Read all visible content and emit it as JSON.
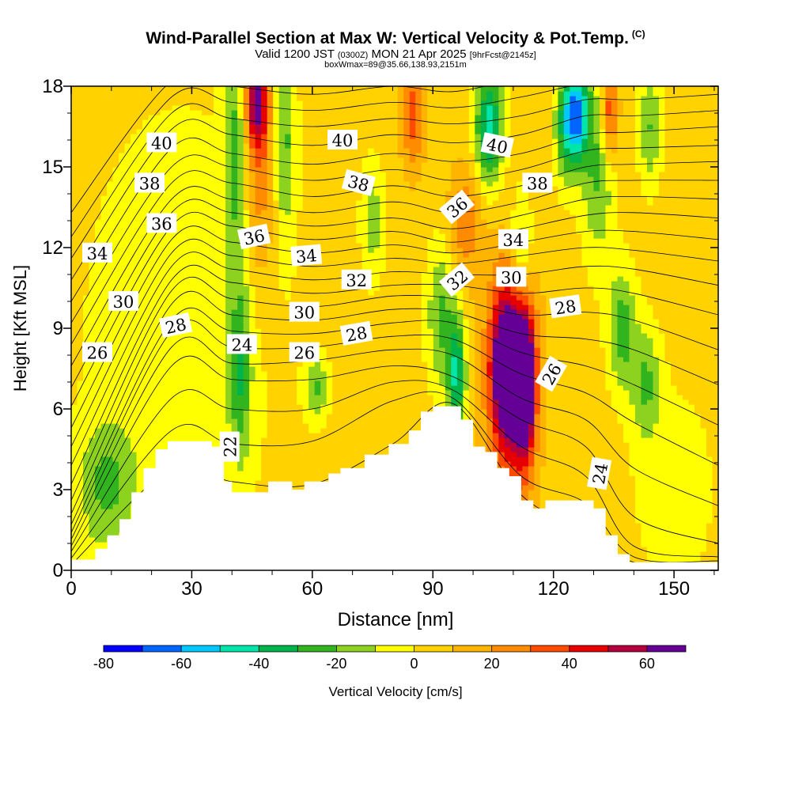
{
  "header": {
    "title": "Wind-Parallel Section at Max W: Vertical Velocity & Pot.Temp.",
    "copyright": "(C)",
    "valid_prefix": "Valid 1200 JST",
    "valid_utc": "(0300Z)",
    "valid_date": "MON 21 Apr 2025",
    "forecast": "[9hrFcst@2145z]",
    "box_info": "boxWmax=89@35.66,138.93,2151m"
  },
  "chart_data": {
    "type": "heatmap",
    "title": "Wind-Parallel Section at Max W: Vertical Velocity & Pot.Temp.",
    "xlabel": "Distance [nm]",
    "ylabel": "Height [Kft MSL]",
    "xlim": [
      0,
      161
    ],
    "ylim": [
      0,
      18
    ],
    "x_ticks": [
      0,
      30,
      60,
      90,
      120,
      150
    ],
    "y_ticks": [
      0,
      3,
      6,
      9,
      12,
      15,
      18
    ],
    "grid": false,
    "colorbar": {
      "label": "Vertical Velocity [cm/s]",
      "tick_values": [
        -80,
        -60,
        -40,
        -20,
        0,
        20,
        40,
        60
      ],
      "tick_labels": [
        "-80",
        "-60",
        "-40",
        "-20",
        "0",
        "20",
        "40",
        "60"
      ],
      "bins": [
        {
          "from": -80,
          "to": -70,
          "color": "#0000ff"
        },
        {
          "from": -70,
          "to": -60,
          "color": "#0064ff"
        },
        {
          "from": -60,
          "to": -50,
          "color": "#00c8ff"
        },
        {
          "from": -50,
          "to": -40,
          "color": "#00e6aa"
        },
        {
          "from": -40,
          "to": -30,
          "color": "#00b44b"
        },
        {
          "from": -30,
          "to": -20,
          "color": "#32b41e"
        },
        {
          "from": -20,
          "to": -10,
          "color": "#8cd21e"
        },
        {
          "from": -10,
          "to": 0,
          "color": "#ffff00"
        },
        {
          "from": 0,
          "to": 10,
          "color": "#ffd200"
        },
        {
          "from": 10,
          "to": 20,
          "color": "#ffb400"
        },
        {
          "from": 20,
          "to": 30,
          "color": "#ff8c00"
        },
        {
          "from": 30,
          "to": 40,
          "color": "#ff4b00"
        },
        {
          "from": 40,
          "to": 50,
          "color": "#e60000"
        },
        {
          "from": 50,
          "to": 60,
          "color": "#b4003c"
        },
        {
          "from": 60,
          "to": 70,
          "color": "#640096"
        }
      ]
    },
    "background_color": "#ffd200",
    "vertical_velocity_features": [
      {
        "x": 3,
        "y": 0.8,
        "w": 0,
        "sx": 3,
        "sy": 0.6
      },
      {
        "x": 9,
        "y": 3.2,
        "w": -20,
        "sx": 5,
        "sy": 1.6
      },
      {
        "x": 27,
        "y": 9,
        "w": -5,
        "sx": 20,
        "sy": 7
      },
      {
        "x": 46,
        "y": 17.5,
        "w": 55,
        "sx": 2,
        "sy": 1.2
      },
      {
        "x": 47,
        "y": 15,
        "w": 30,
        "sx": 3,
        "sy": 3
      },
      {
        "x": 41,
        "y": 15.5,
        "w": -25,
        "sx": 2,
        "sy": 2.5
      },
      {
        "x": 42,
        "y": 7.5,
        "w": -25,
        "sx": 2,
        "sy": 2.5
      },
      {
        "x": 53,
        "y": 16,
        "w": -22,
        "sx": 2,
        "sy": 2.5
      },
      {
        "x": 61,
        "y": 6.8,
        "w": -20,
        "sx": 2,
        "sy": 0.8
      },
      {
        "x": 75,
        "y": 13,
        "w": -15,
        "sx": 2,
        "sy": 1.6
      },
      {
        "x": 85,
        "y": 17,
        "w": 35,
        "sx": 2,
        "sy": 1.5
      },
      {
        "x": 92,
        "y": 9.5,
        "w": -22,
        "sx": 2.5,
        "sy": 2
      },
      {
        "x": 96,
        "y": 7.2,
        "w": -40,
        "sx": 1.6,
        "sy": 1.6
      },
      {
        "x": 98,
        "y": 13,
        "w": 28,
        "sx": 3,
        "sy": 1.5
      },
      {
        "x": 104,
        "y": 16.5,
        "w": -45,
        "sx": 2.5,
        "sy": 1.6
      },
      {
        "x": 108,
        "y": 7.5,
        "w": 62,
        "sx": 2.2,
        "sy": 1.6
      },
      {
        "x": 108,
        "y": 7.5,
        "w": 40,
        "sx": 4,
        "sy": 3
      },
      {
        "x": 113,
        "y": 7,
        "w": 68,
        "sx": 1.5,
        "sy": 1.6
      },
      {
        "x": 112,
        "y": 7,
        "w": 40,
        "sx": 3,
        "sy": 3
      },
      {
        "x": 112,
        "y": 12,
        "w": -25,
        "sx": 2,
        "sy": 1.5
      },
      {
        "x": 126,
        "y": 17,
        "w": -55,
        "sx": 2,
        "sy": 1.2
      },
      {
        "x": 123,
        "y": 16.5,
        "w": -30,
        "sx": 2,
        "sy": 1.5
      },
      {
        "x": 131,
        "y": 15,
        "w": -22,
        "sx": 3,
        "sy": 2.5
      },
      {
        "x": 134,
        "y": 17,
        "w": 45,
        "sx": 1.5,
        "sy": 1.2
      },
      {
        "x": 137,
        "y": 9,
        "w": -25,
        "sx": 2.5,
        "sy": 1.6
      },
      {
        "x": 143,
        "y": 7,
        "w": -20,
        "sx": 2.5,
        "sy": 1.5
      },
      {
        "x": 144,
        "y": 16.5,
        "w": -20,
        "sx": 2,
        "sy": 1.6
      },
      {
        "x": 150,
        "y": 3,
        "w": -5,
        "sx": 8,
        "sy": 3
      }
    ],
    "terrain": [
      [
        0,
        0.4
      ],
      [
        6,
        0.4
      ],
      [
        6,
        0.8
      ],
      [
        9,
        0.8
      ],
      [
        9,
        1.3
      ],
      [
        12,
        1.3
      ],
      [
        12,
        1.9
      ],
      [
        15,
        1.9
      ],
      [
        15,
        2.9
      ],
      [
        18,
        2.9
      ],
      [
        18,
        3.8
      ],
      [
        21,
        3.8
      ],
      [
        21,
        4.5
      ],
      [
        24,
        4.5
      ],
      [
        24,
        4.8
      ],
      [
        35,
        4.8
      ],
      [
        35,
        4.6
      ],
      [
        38,
        4.6
      ],
      [
        38,
        3.3
      ],
      [
        40,
        3.3
      ],
      [
        40,
        2.9
      ],
      [
        49,
        2.9
      ],
      [
        49,
        3.3
      ],
      [
        55,
        3.3
      ],
      [
        55,
        3
      ],
      [
        58,
        3
      ],
      [
        58,
        3.3
      ],
      [
        64,
        3.3
      ],
      [
        64,
        3.6
      ],
      [
        67,
        3.6
      ],
      [
        67,
        3.8
      ],
      [
        73,
        3.8
      ],
      [
        73,
        4.3
      ],
      [
        79,
        4.3
      ],
      [
        79,
        4.7
      ],
      [
        84,
        4.7
      ],
      [
        84,
        5.2
      ],
      [
        87,
        5.2
      ],
      [
        87,
        5.9
      ],
      [
        90,
        5.9
      ],
      [
        90,
        6.1
      ],
      [
        97,
        6.1
      ],
      [
        97,
        5.6
      ],
      [
        100,
        5.6
      ],
      [
        100,
        4.6
      ],
      [
        103,
        4.6
      ],
      [
        103,
        4.4
      ],
      [
        106,
        4.4
      ],
      [
        106,
        3.8
      ],
      [
        109,
        3.8
      ],
      [
        109,
        3.5
      ],
      [
        112,
        3.5
      ],
      [
        112,
        2.6
      ],
      [
        115,
        2.6
      ],
      [
        115,
        2.3
      ],
      [
        118,
        2.3
      ],
      [
        118,
        2.6
      ],
      [
        130,
        2.6
      ],
      [
        130,
        2.3
      ],
      [
        133,
        2.3
      ],
      [
        133,
        1.3
      ],
      [
        136,
        1.3
      ],
      [
        136,
        0.6
      ],
      [
        139,
        0.6
      ],
      [
        139,
        0.3
      ],
      [
        161,
        0.3
      ]
    ],
    "isentropes": {
      "levels": [
        21,
        22,
        23,
        24,
        25,
        26,
        27,
        28,
        29,
        30,
        31,
        32,
        33,
        34,
        35,
        36,
        37,
        38,
        39,
        40,
        41,
        42,
        43
      ],
      "pegs": [
        {
          "x": 0,
          "y": [
            0.2,
            0.45,
            0.7,
            0.9,
            1.15,
            1.4,
            1.7,
            2.1,
            2.6,
            3.2,
            3.9,
            4.6,
            5.3,
            6.1,
            6.8,
            7.6,
            8.4,
            9.2,
            10,
            10.8,
            11.6,
            12.4,
            13.3
          ]
        },
        {
          "x": 25,
          "y": [
            3.8,
            5.2,
            6.4,
            7.6,
            8.3,
            8.9,
            9.3,
            9.9,
            10.4,
            10.8,
            11.3,
            11.8,
            12.3,
            12.8,
            13.3,
            13.8,
            14.4,
            15,
            15.7,
            16.4,
            17,
            17.6,
            18.2
          ]
        },
        {
          "x": 40,
          "y": [
            3.3,
            4.7,
            6,
            7.1,
            7.7,
            8.3,
            8.9,
            9.5,
            10.1,
            10.7,
            11.2,
            11.7,
            12.2,
            12.8,
            13.3,
            13.8,
            14.4,
            15,
            15.5,
            16.2,
            16.8,
            17.4,
            18
          ]
        },
        {
          "x": 60,
          "y": [
            3.2,
            4.8,
            6,
            7.1,
            7.8,
            8.3,
            8.8,
            9.3,
            9.8,
            10.3,
            10.8,
            11.3,
            11.8,
            12.3,
            12.8,
            13.3,
            13.9,
            14.5,
            15.1,
            15.8,
            16.5,
            17.1,
            17.7
          ]
        },
        {
          "x": 80,
          "y": [
            4.7,
            6.3,
            7,
            7.6,
            8.2,
            8.7,
            9.2,
            9.7,
            10.2,
            10.6,
            11.1,
            11.6,
            12.1,
            12.6,
            13.1,
            13.7,
            14.3,
            14.9,
            15.5,
            16.2,
            16.8,
            17.4,
            18
          ]
        },
        {
          "x": 95,
          "y": [
            6.2,
            6.4,
            6.7,
            7.2,
            8,
            8.6,
            9.2,
            9.6,
            10.1,
            10.6,
            11,
            11.4,
            11.8,
            12.2,
            12.7,
            13.3,
            13.9,
            14.5,
            15.2,
            15.9,
            16.6,
            17.2,
            17.8
          ]
        },
        {
          "x": 112,
          "y": [
            2.8,
            3.5,
            4.6,
            5.6,
            6.4,
            7.3,
            8.1,
            8.8,
            9.5,
            10.3,
            11,
            11.7,
            12.2,
            12.7,
            13.2,
            13.7,
            14.3,
            14.9,
            15.5,
            16.2,
            16.9,
            17.6,
            18.3
          ]
        },
        {
          "x": 128,
          "y": [
            1.5,
            2.5,
            3.5,
            4.6,
            5.6,
            6.6,
            7.6,
            8.6,
            9.6,
            10.5,
            11.3,
            12,
            12.6,
            13.2,
            13.8,
            14.4,
            15,
            15.6,
            16.2,
            16.9,
            17.5,
            18.1,
            18.6
          ]
        },
        {
          "x": 140,
          "y": [
            0.3,
            0.5,
            0.9,
            2,
            3.8,
            5.5,
            6.9,
            8.2,
            9.3,
            10.3,
            11.2,
            11.9,
            12.6,
            13.3,
            13.9,
            14.5,
            15.1,
            15.7,
            16.3,
            16.9,
            17.5,
            18.1,
            18.6
          ]
        },
        {
          "x": 161,
          "y": [
            0.2,
            0.35,
            0.5,
            1,
            2.4,
            3.9,
            5.4,
            6.9,
            8.2,
            9.5,
            10.6,
            11.5,
            12.3,
            13.1,
            13.8,
            14.5,
            15.2,
            15.8,
            16.5,
            17.1,
            17.7,
            18.3,
            18.8
          ]
        }
      ],
      "contour_labels": [
        {
          "text": "40",
          "x": 22.5,
          "y": 15.9,
          "angle": 0
        },
        {
          "text": "40",
          "x": 67.5,
          "y": 16.0,
          "angle": 0
        },
        {
          "text": "40",
          "x": 106,
          "y": 15.8,
          "angle": 12
        },
        {
          "text": "38",
          "x": 19.5,
          "y": 14.4,
          "angle": 0
        },
        {
          "text": "38",
          "x": 71.5,
          "y": 14.4,
          "angle": 15
        },
        {
          "text": "38",
          "x": 116,
          "y": 14.4,
          "angle": 0
        },
        {
          "text": "36",
          "x": 22.5,
          "y": 12.9,
          "angle": 0
        },
        {
          "text": "36",
          "x": 45.5,
          "y": 12.4,
          "angle": -12
        },
        {
          "text": "36",
          "x": 96,
          "y": 13.5,
          "angle": -40
        },
        {
          "text": "34",
          "x": 6.5,
          "y": 11.8,
          "angle": 0
        },
        {
          "text": "34",
          "x": 58.5,
          "y": 11.7,
          "angle": -5
        },
        {
          "text": "34",
          "x": 110,
          "y": 12.3,
          "angle": 0
        },
        {
          "text": "32",
          "x": 71,
          "y": 10.8,
          "angle": 0
        },
        {
          "text": "32",
          "x": 96,
          "y": 10.8,
          "angle": -40
        },
        {
          "text": "30",
          "x": 13,
          "y": 10.0,
          "angle": 0
        },
        {
          "text": "30",
          "x": 58,
          "y": 9.6,
          "angle": 0
        },
        {
          "text": "30",
          "x": 109.5,
          "y": 10.9,
          "angle": 0
        },
        {
          "text": "28",
          "x": 26,
          "y": 9.1,
          "angle": -12
        },
        {
          "text": "28",
          "x": 71,
          "y": 8.8,
          "angle": -10
        },
        {
          "text": "28",
          "x": 123,
          "y": 9.8,
          "angle": -8
        },
        {
          "text": "26",
          "x": 6.5,
          "y": 8.1,
          "angle": 0
        },
        {
          "text": "26",
          "x": 58,
          "y": 8.1,
          "angle": 0
        },
        {
          "text": "26",
          "x": 119.5,
          "y": 7.3,
          "angle": -60
        },
        {
          "text": "24",
          "x": 42.5,
          "y": 8.4,
          "angle": 0
        },
        {
          "text": "24",
          "x": 131.5,
          "y": 3.6,
          "angle": -80
        },
        {
          "text": "22",
          "x": 39.5,
          "y": 4.6,
          "angle": -90
        }
      ]
    }
  }
}
